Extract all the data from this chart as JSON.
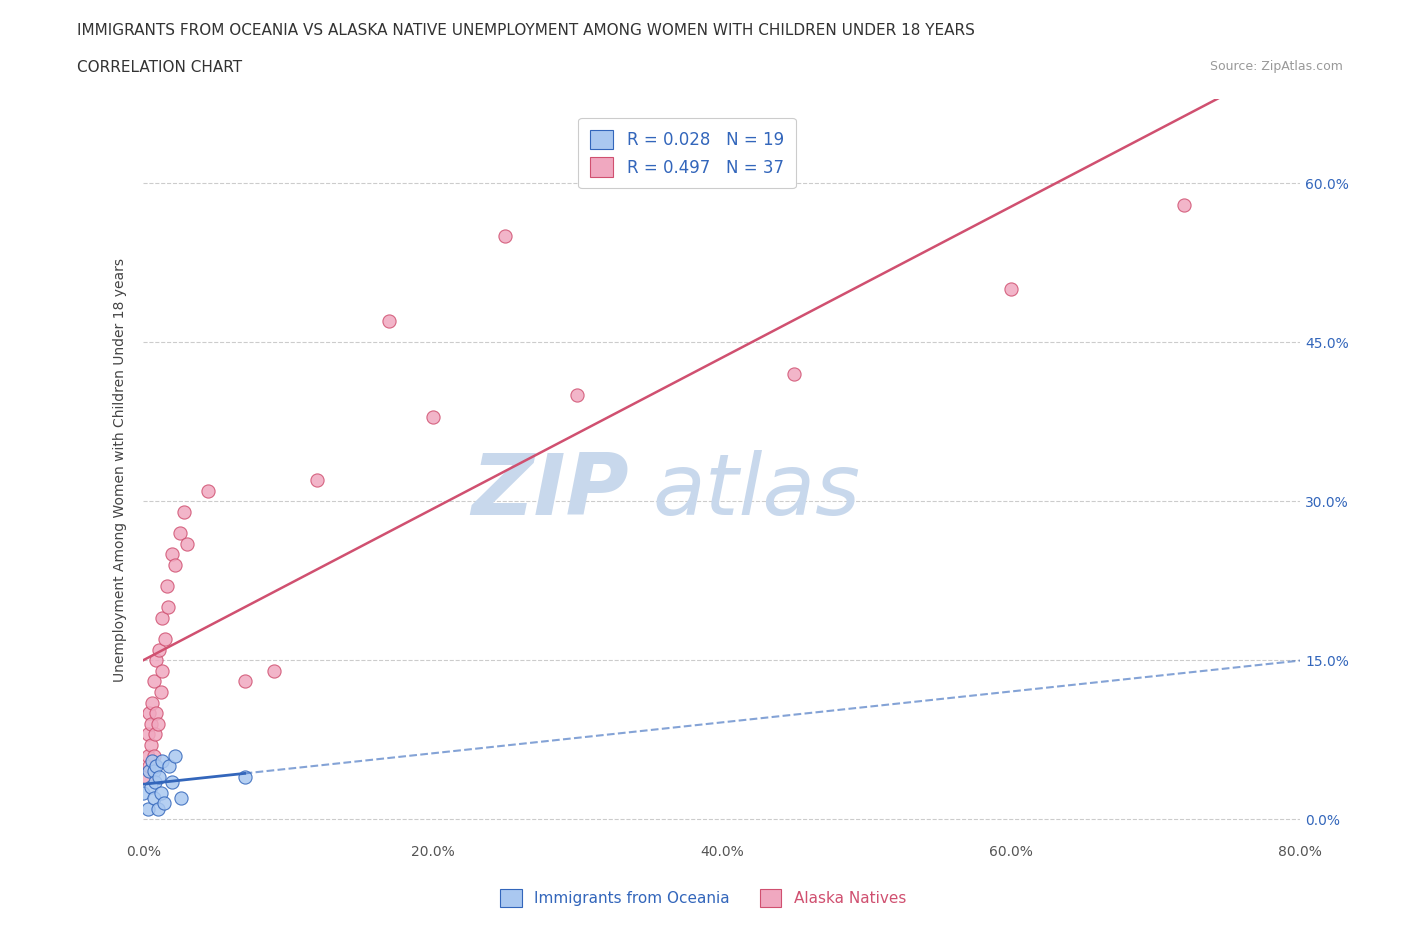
{
  "title": "IMMIGRANTS FROM OCEANIA VS ALASKA NATIVE UNEMPLOYMENT AMONG WOMEN WITH CHILDREN UNDER 18 YEARS",
  "subtitle": "CORRELATION CHART",
  "source": "Source: ZipAtlas.com",
  "ylabel": "Unemployment Among Women with Children Under 18 years",
  "xlim": [
    0.0,
    0.8
  ],
  "ylim": [
    -0.02,
    0.68
  ],
  "xticks": [
    0.0,
    0.2,
    0.4,
    0.6,
    0.8
  ],
  "xtick_labels": [
    "0.0%",
    "20.0%",
    "40.0%",
    "60.0%",
    "80.0%"
  ],
  "ytick_labels_right": [
    "0.0%",
    "15.0%",
    "30.0%",
    "45.0%",
    "60.0%"
  ],
  "ytick_vals_right": [
    0.0,
    0.15,
    0.3,
    0.45,
    0.6
  ],
  "legend_r1": "R = 0.028",
  "legend_n1": "N = 19",
  "legend_r2": "R = 0.497",
  "legend_n2": "N = 37",
  "color_blue": "#aac8f0",
  "color_pink": "#f0a8c0",
  "line_color_blue": "#3366bb",
  "line_color_pink": "#d05070",
  "legend_text_color": "#3366bb",
  "watermark_zip": "ZIP",
  "watermark_atlas": "atlas",
  "watermark_color_zip": "#c8d8ec",
  "watermark_color_atlas": "#c8d8ec",
  "oceania_x": [
    0.0,
    0.003,
    0.004,
    0.005,
    0.006,
    0.007,
    0.007,
    0.008,
    0.009,
    0.01,
    0.011,
    0.012,
    0.013,
    0.014,
    0.018,
    0.02,
    0.022,
    0.026,
    0.07
  ],
  "oceania_y": [
    0.025,
    0.01,
    0.045,
    0.03,
    0.055,
    0.02,
    0.045,
    0.035,
    0.05,
    0.01,
    0.04,
    0.025,
    0.055,
    0.015,
    0.05,
    0.035,
    0.06,
    0.02,
    0.04
  ],
  "alaska_x": [
    0.002,
    0.003,
    0.003,
    0.004,
    0.004,
    0.005,
    0.005,
    0.006,
    0.007,
    0.007,
    0.008,
    0.009,
    0.009,
    0.01,
    0.011,
    0.012,
    0.013,
    0.013,
    0.015,
    0.016,
    0.017,
    0.02,
    0.022,
    0.025,
    0.028,
    0.03,
    0.045,
    0.07,
    0.09,
    0.12,
    0.17,
    0.2,
    0.25,
    0.3,
    0.45,
    0.6,
    0.72
  ],
  "alaska_y": [
    0.04,
    0.06,
    0.08,
    0.05,
    0.1,
    0.07,
    0.09,
    0.11,
    0.06,
    0.13,
    0.08,
    0.1,
    0.15,
    0.09,
    0.16,
    0.12,
    0.14,
    0.19,
    0.17,
    0.22,
    0.2,
    0.25,
    0.24,
    0.27,
    0.29,
    0.26,
    0.31,
    0.13,
    0.14,
    0.32,
    0.47,
    0.38,
    0.55,
    0.4,
    0.42,
    0.5,
    0.58
  ],
  "alaska_line_x": [
    0.0,
    0.8
  ],
  "oceania_line_x_start": 0.0,
  "oceania_line_x_end": 0.8
}
